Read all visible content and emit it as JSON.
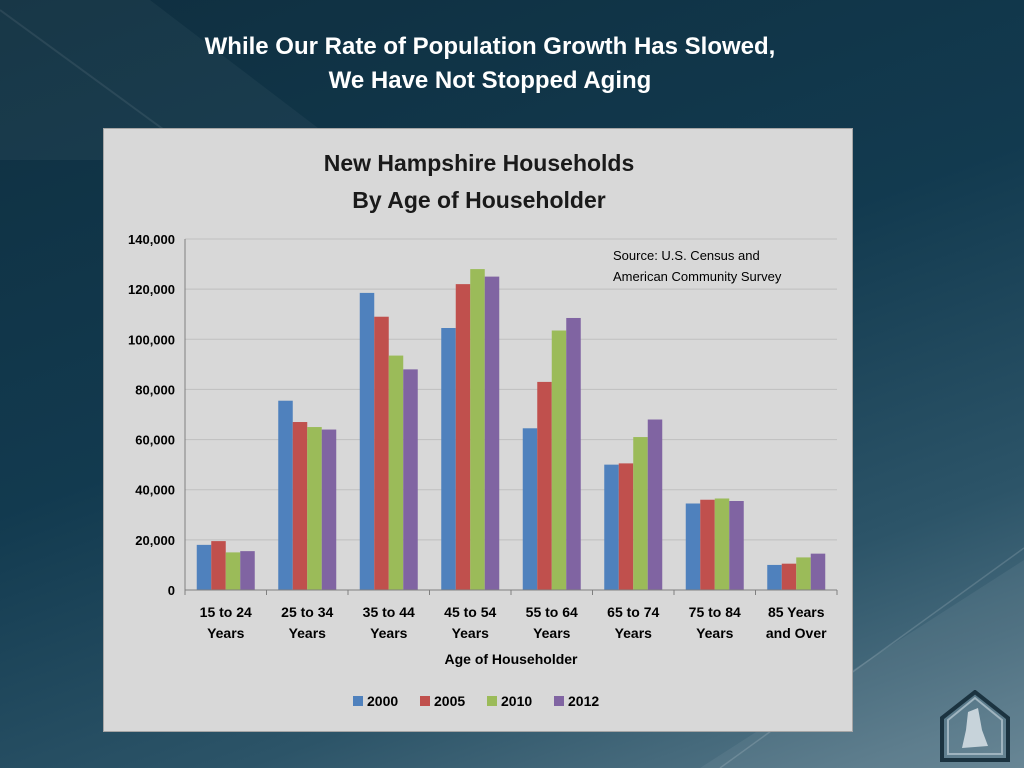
{
  "slide": {
    "title_line1": "While Our Rate of Population Growth Has Slowed,",
    "title_line2": "We Have Not Stopped Aging"
  },
  "colors": {
    "series": [
      "#4f81bd",
      "#c0504d",
      "#9bbb59",
      "#8064a2"
    ],
    "panel": "#d8d8d8",
    "gridline": "#bfbfbf"
  },
  "logo": {
    "icon": "nh-house-logo-icon"
  },
  "chart_data": {
    "type": "bar",
    "title_line1": "New Hampshire Households",
    "title_line2": "By Age of Householder",
    "xlabel": "Age of Householder",
    "ylabel": "",
    "ylim": [
      0,
      140000
    ],
    "yticks": [
      0,
      20000,
      40000,
      60000,
      80000,
      100000,
      120000,
      140000
    ],
    "ytick_labels": [
      "0",
      "20,000",
      "40,000",
      "60,000",
      "80,000",
      "100,000",
      "120,000",
      "140,000"
    ],
    "grid": true,
    "legend_position": "bottom",
    "annotation_line1": "Source: U.S. Census and",
    "annotation_line2": "American Community Survey",
    "categories": [
      [
        "15 to 24",
        "Years"
      ],
      [
        "25 to 34",
        "Years"
      ],
      [
        "35 to 44",
        "Years"
      ],
      [
        "45 to 54",
        "Years"
      ],
      [
        "55 to 64",
        "Years"
      ],
      [
        "65 to 74",
        "Years"
      ],
      [
        "75 to 84",
        "Years"
      ],
      [
        "85 Years",
        "and Over"
      ]
    ],
    "series": [
      {
        "name": "2000",
        "values": [
          18000,
          75500,
          118500,
          104500,
          64500,
          50000,
          34500,
          10000
        ]
      },
      {
        "name": "2005",
        "values": [
          19500,
          67000,
          109000,
          122000,
          83000,
          50500,
          36000,
          10500
        ]
      },
      {
        "name": "2010",
        "values": [
          15000,
          65000,
          93500,
          128000,
          103500,
          61000,
          36500,
          13000
        ]
      },
      {
        "name": "2012",
        "values": [
          15500,
          64000,
          88000,
          125000,
          108500,
          68000,
          35500,
          14500
        ]
      }
    ]
  }
}
